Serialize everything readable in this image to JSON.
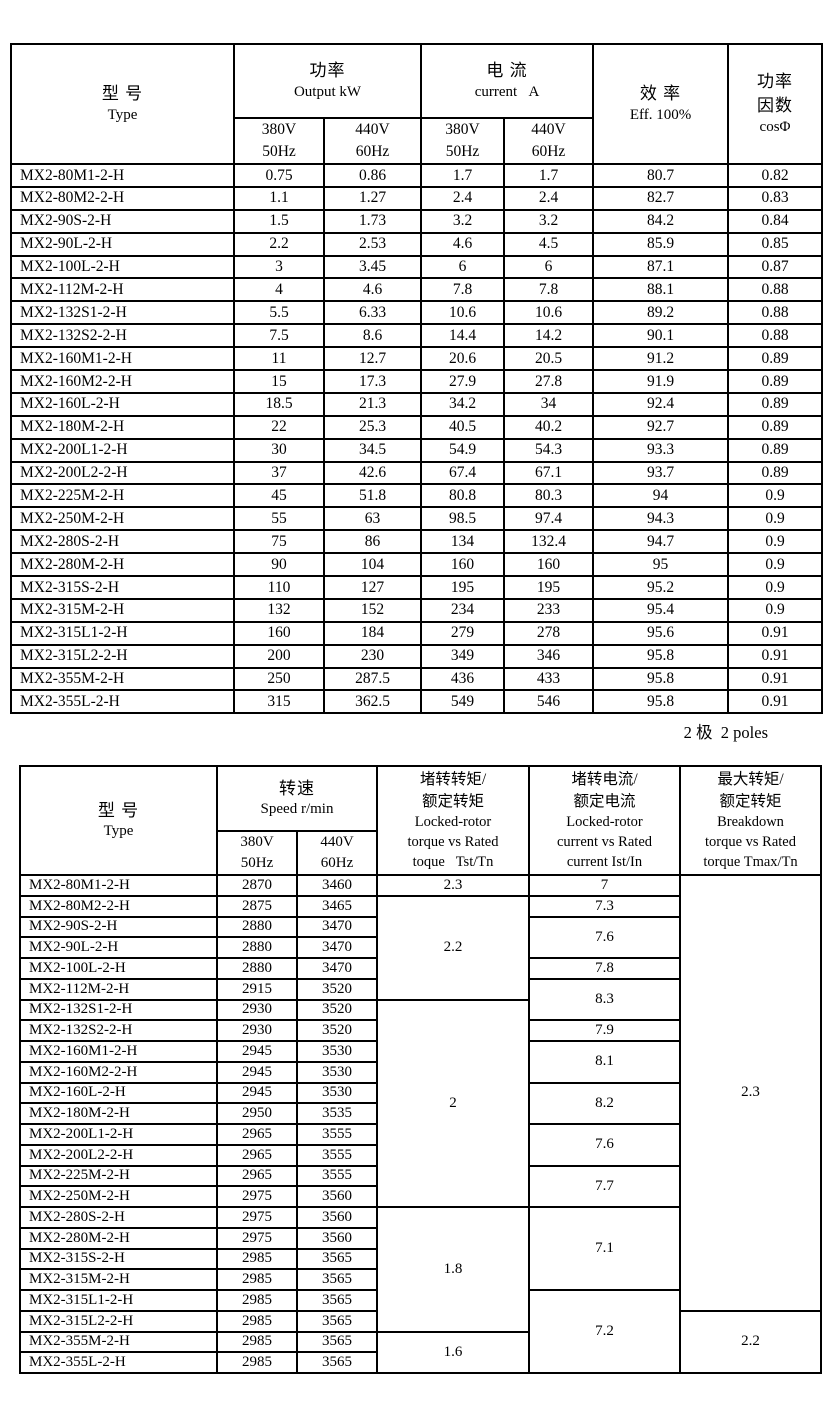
{
  "page": {
    "pole_note": "2 极  2 poles"
  },
  "table1": {
    "header": {
      "type_zh": "型 号",
      "type_en": "Type",
      "power_zh": "功率",
      "power_en": "Output kW",
      "current_zh": "电 流",
      "current_en": "current   A",
      "eff_zh": "效 率",
      "eff_en": "Eff. 100%",
      "pf_zh1": "功率",
      "pf_zh2": "因数",
      "pf_en": "cosΦ",
      "sub": {
        "v380": "380V",
        "hz50": "50Hz",
        "v440": "440V",
        "hz60": "60Hz"
      }
    },
    "rows": [
      [
        "MX2-80M1-2-H",
        "0.75",
        "0.86",
        "1.7",
        "1.7",
        "80.7",
        "0.82"
      ],
      [
        "MX2-80M2-2-H",
        "1.1",
        "1.27",
        "2.4",
        "2.4",
        "82.7",
        "0.83"
      ],
      [
        "MX2-90S-2-H",
        "1.5",
        "1.73",
        "3.2",
        "3.2",
        "84.2",
        "0.84"
      ],
      [
        "MX2-90L-2-H",
        "2.2",
        "2.53",
        "4.6",
        "4.5",
        "85.9",
        "0.85"
      ],
      [
        "MX2-100L-2-H",
        "3",
        "3.45",
        "6",
        "6",
        "87.1",
        "0.87"
      ],
      [
        "MX2-112M-2-H",
        "4",
        "4.6",
        "7.8",
        "7.8",
        "88.1",
        "0.88"
      ],
      [
        "MX2-132S1-2-H",
        "5.5",
        "6.33",
        "10.6",
        "10.6",
        "89.2",
        "0.88"
      ],
      [
        "MX2-132S2-2-H",
        "7.5",
        "8.6",
        "14.4",
        "14.2",
        "90.1",
        "0.88"
      ],
      [
        "MX2-160M1-2-H",
        "11",
        "12.7",
        "20.6",
        "20.5",
        "91.2",
        "0.89"
      ],
      [
        "MX2-160M2-2-H",
        "15",
        "17.3",
        "27.9",
        "27.8",
        "91.9",
        "0.89"
      ],
      [
        "MX2-160L-2-H",
        "18.5",
        "21.3",
        "34.2",
        "34",
        "92.4",
        "0.89"
      ],
      [
        "MX2-180M-2-H",
        "22",
        "25.3",
        "40.5",
        "40.2",
        "92.7",
        "0.89"
      ],
      [
        "MX2-200L1-2-H",
        "30",
        "34.5",
        "54.9",
        "54.3",
        "93.3",
        "0.89"
      ],
      [
        "MX2-200L2-2-H",
        "37",
        "42.6",
        "67.4",
        "67.1",
        "93.7",
        "0.89"
      ],
      [
        "MX2-225M-2-H",
        "45",
        "51.8",
        "80.8",
        "80.3",
        "94",
        "0.9"
      ],
      [
        "MX2-250M-2-H",
        "55",
        "63",
        "98.5",
        "97.4",
        "94.3",
        "0.9"
      ],
      [
        "MX2-280S-2-H",
        "75",
        "86",
        "134",
        "132.4",
        "94.7",
        "0.9"
      ],
      [
        "MX2-280M-2-H",
        "90",
        "104",
        "160",
        "160",
        "95",
        "0.9"
      ],
      [
        "MX2-315S-2-H",
        "110",
        "127",
        "195",
        "195",
        "95.2",
        "0.9"
      ],
      [
        "MX2-315M-2-H",
        "132",
        "152",
        "234",
        "233",
        "95.4",
        "0.9"
      ],
      [
        "MX2-315L1-2-H",
        "160",
        "184",
        "279",
        "278",
        "95.6",
        "0.91"
      ],
      [
        "MX2-315L2-2-H",
        "200",
        "230",
        "349",
        "346",
        "95.8",
        "0.91"
      ],
      [
        "MX2-355M-2-H",
        "250",
        "287.5",
        "436",
        "433",
        "95.8",
        "0.91"
      ],
      [
        "MX2-355L-2-H",
        "315",
        "362.5",
        "549",
        "546",
        "95.8",
        "0.91"
      ]
    ]
  },
  "table2": {
    "header": {
      "type_zh": "型 号",
      "type_en": "Type",
      "speed_zh": "转速",
      "speed_en": "Speed r/min",
      "sub": {
        "v380": "380V",
        "hz50": "50Hz",
        "v440": "440V",
        "hz60": "60Hz"
      },
      "tst_lines": [
        "堵转转矩/",
        "额定转矩",
        "Locked-rotor",
        "torque vs Rated",
        "toque   Tst/Tn"
      ],
      "ist_lines": [
        "堵转电流/",
        "额定电流",
        "Locked-rotor",
        "current vs Rated",
        "current Ist/In"
      ],
      "tmax_lines": [
        "最大转矩/",
        "额定转矩",
        "Breakdown",
        "torque vs Rated",
        "torque Tmax/Tn"
      ]
    },
    "rows": [
      [
        "MX2-80M1-2-H",
        "2870",
        "3460"
      ],
      [
        "MX2-80M2-2-H",
        "2875",
        "3465"
      ],
      [
        "MX2-90S-2-H",
        "2880",
        "3470"
      ],
      [
        "MX2-90L-2-H",
        "2880",
        "3470"
      ],
      [
        "MX2-100L-2-H",
        "2880",
        "3470"
      ],
      [
        "MX2-112M-2-H",
        "2915",
        "3520"
      ],
      [
        "MX2-132S1-2-H",
        "2930",
        "3520"
      ],
      [
        "MX2-132S2-2-H",
        "2930",
        "3520"
      ],
      [
        "MX2-160M1-2-H",
        "2945",
        "3530"
      ],
      [
        "MX2-160M2-2-H",
        "2945",
        "3530"
      ],
      [
        "MX2-160L-2-H",
        "2945",
        "3530"
      ],
      [
        "MX2-180M-2-H",
        "2950",
        "3535"
      ],
      [
        "MX2-200L1-2-H",
        "2965",
        "3555"
      ],
      [
        "MX2-200L2-2-H",
        "2965",
        "3555"
      ],
      [
        "MX2-225M-2-H",
        "2965",
        "3555"
      ],
      [
        "MX2-250M-2-H",
        "2975",
        "3560"
      ],
      [
        "MX2-280S-2-H",
        "2975",
        "3560"
      ],
      [
        "MX2-280M-2-H",
        "2975",
        "3560"
      ],
      [
        "MX2-315S-2-H",
        "2985",
        "3565"
      ],
      [
        "MX2-315M-2-H",
        "2985",
        "3565"
      ],
      [
        "MX2-315L1-2-H",
        "2985",
        "3565"
      ],
      [
        "MX2-315L2-2-H",
        "2985",
        "3565"
      ],
      [
        "MX2-355M-2-H",
        "2985",
        "3565"
      ],
      [
        "MX2-355L-2-H",
        "2985",
        "3565"
      ]
    ],
    "tst_cells": [
      {
        "row": 0,
        "span": 1,
        "value": "2.3"
      },
      {
        "row": 1,
        "span": 5,
        "value": "2.2"
      },
      {
        "row": 6,
        "span": 10,
        "value": "2"
      },
      {
        "row": 16,
        "span": 6,
        "value": "1.8"
      },
      {
        "row": 22,
        "span": 2,
        "value": "1.6"
      }
    ],
    "ist_cells": [
      {
        "row": 0,
        "span": 1,
        "value": "7"
      },
      {
        "row": 1,
        "span": 1,
        "value": "7.3"
      },
      {
        "row": 2,
        "span": 2,
        "value": "7.6"
      },
      {
        "row": 4,
        "span": 1,
        "value": "7.8"
      },
      {
        "row": 5,
        "span": 2,
        "value": "8.3"
      },
      {
        "row": 7,
        "span": 1,
        "value": "7.9"
      },
      {
        "row": 8,
        "span": 2,
        "value": "8.1"
      },
      {
        "row": 10,
        "span": 2,
        "value": "8.2"
      },
      {
        "row": 12,
        "span": 2,
        "value": "7.6"
      },
      {
        "row": 14,
        "span": 2,
        "value": "7.7"
      },
      {
        "row": 16,
        "span": 4,
        "value": "7.1"
      },
      {
        "row": 20,
        "span": 4,
        "value": "7.2"
      }
    ],
    "tmax_cells": [
      {
        "row": 0,
        "span": 21,
        "value": "2.3"
      },
      {
        "row": 21,
        "span": 3,
        "value": "2.2"
      }
    ]
  }
}
